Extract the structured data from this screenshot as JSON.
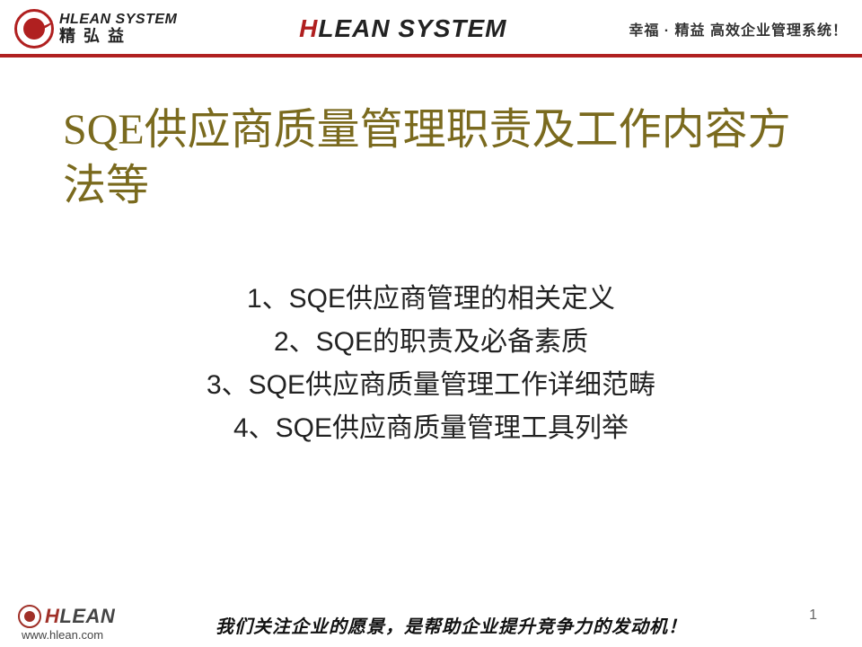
{
  "header": {
    "logo_en": "HLEAN SYSTEM",
    "logo_cn": "精 弘 益",
    "center_h": "H",
    "center_rest": "LEAN SYSTEM",
    "right": "幸福 · 精益  高效企业管理系统！"
  },
  "main": {
    "title": "SQE供应商质量管理职责及工作内容方法等",
    "items": [
      "1、SQE供应商管理的相关定义",
      "2、SQE的职责及必备素质",
      "3、SQE供应商质量管理工作详细范畴",
      "4、SQE供应商质量管理工具列举"
    ]
  },
  "footer": {
    "brand_h": "H",
    "brand_rest": "LEAN",
    "url": "www.hlean.com",
    "tagline": "我们关注企业的愿景，是帮助企业提升竞争力的发动机！",
    "page": "1"
  },
  "colors": {
    "accent": "#b02020",
    "title": "#7a6a1e"
  }
}
